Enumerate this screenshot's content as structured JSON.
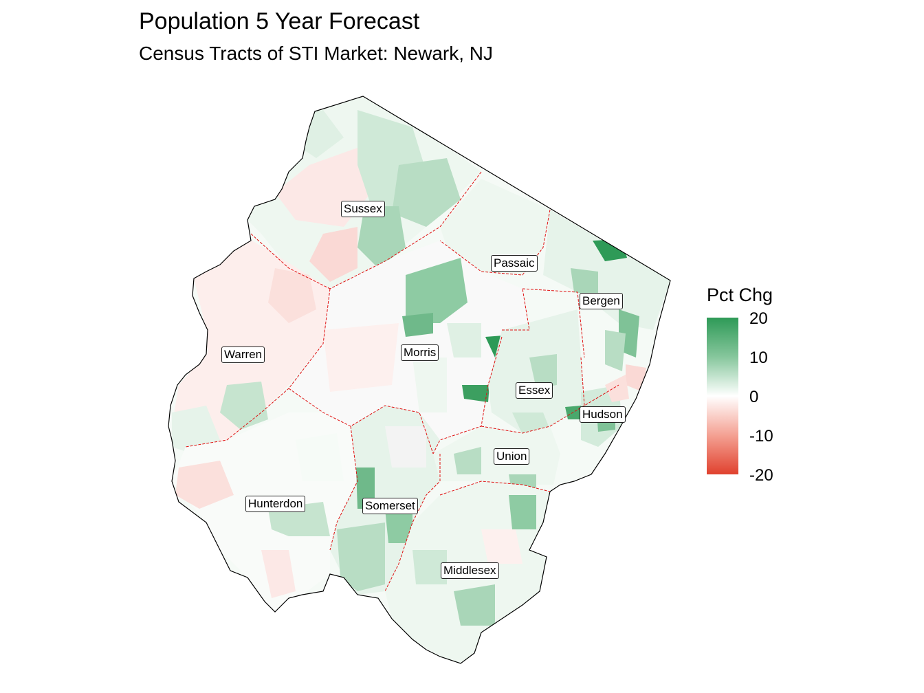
{
  "title": "Population 5 Year Forecast",
  "subtitle": "Census Tracts of STI Market: Newark, NJ",
  "legend": {
    "title": "Pct Chg",
    "ticks": [
      "20",
      "10",
      "0",
      "-10",
      "-20"
    ],
    "colors": {
      "high": "#2e9a57",
      "mid": "#ffffff",
      "low": "#e0412e"
    },
    "range": [
      -20,
      20
    ]
  },
  "counties": [
    {
      "name": "Sussex"
    },
    {
      "name": "Passaic"
    },
    {
      "name": "Bergen"
    },
    {
      "name": "Warren"
    },
    {
      "name": "Morris"
    },
    {
      "name": "Essex"
    },
    {
      "name": "Hudson"
    },
    {
      "name": "Union"
    },
    {
      "name": "Hunterdon"
    },
    {
      "name": "Somerset"
    },
    {
      "name": "Middlesex"
    }
  ]
}
